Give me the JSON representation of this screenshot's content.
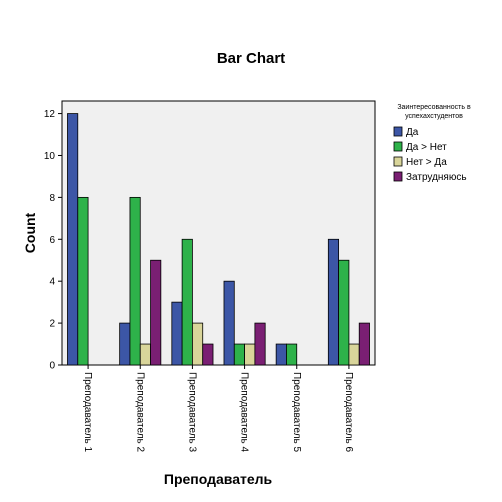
{
  "chart_data": {
    "type": "bar",
    "title": "Bar Chart",
    "xlabel": "Преподаватель",
    "ylabel": "Count",
    "categories": [
      "Преподаватель 1",
      "Преподаватель 2",
      "Преподаватель 3",
      "Преподаватель 4",
      "Преподаватель 5",
      "Преподаватель 6"
    ],
    "series": [
      {
        "name": "Да",
        "color": "#3c56a6",
        "values": [
          12,
          2,
          3,
          4,
          1,
          6
        ]
      },
      {
        "name": "Да > Нет",
        "color": "#2eb24a",
        "values": [
          8,
          8,
          6,
          1,
          1,
          5
        ]
      },
      {
        "name": "Нет > Да",
        "color": "#d9d59a",
        "values": [
          0,
          1,
          2,
          1,
          0,
          1
        ]
      },
      {
        "name": "Затрудняюсь",
        "color": "#7a1f73",
        "values": [
          0,
          5,
          1,
          2,
          0,
          2
        ]
      }
    ],
    "ylim": [
      0,
      12.6
    ],
    "yticks": [
      0,
      2,
      4,
      6,
      8,
      10,
      12
    ],
    "legend": {
      "title_lines": [
        "Заинтересованность в",
        "успехахстудентов"
      ],
      "placement": "right"
    },
    "plot_background": "#f0f0f0"
  }
}
